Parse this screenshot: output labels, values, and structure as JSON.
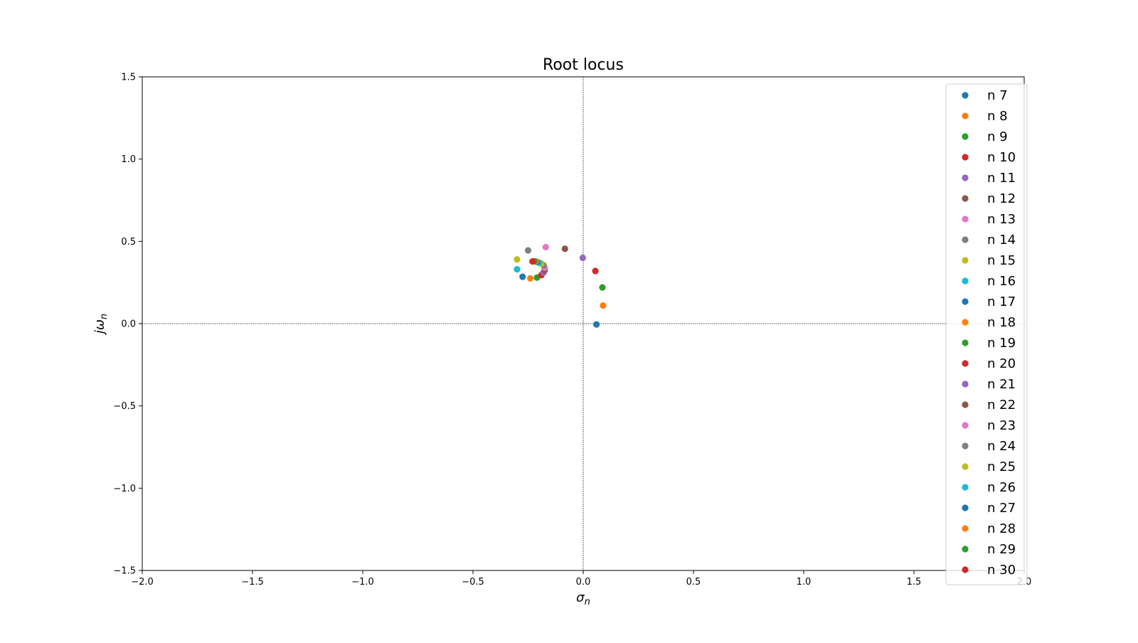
{
  "chart_data": {
    "type": "scatter",
    "title": "Root locus",
    "xlabel": "σ",
    "xlabel_sub": "n",
    "ylabel": "jω",
    "ylabel_sub": "n",
    "xlim": [
      -2.0,
      2.0
    ],
    "ylim": [
      -1.5,
      1.5
    ],
    "xticks": [
      -2.0,
      -1.5,
      -1.0,
      -0.5,
      0.0,
      0.5,
      1.0,
      1.5,
      2.0
    ],
    "xtick_labels": [
      "−2.0",
      "−1.5",
      "−1.0",
      "−0.5",
      "0.0",
      "0.5",
      "1.0",
      "1.5",
      "2.0"
    ],
    "yticks": [
      -1.5,
      -1.0,
      -0.5,
      0.0,
      0.5,
      1.0,
      1.5
    ],
    "ytick_labels": [
      "−1.5",
      "−1.0",
      "−0.5",
      "0.0",
      "0.5",
      "1.0",
      "1.5"
    ],
    "reference_lines": {
      "x": 0,
      "y": 0,
      "style": "dotted"
    },
    "legend_position": "upper-right",
    "series": [
      {
        "name": "n 7",
        "color": "#1f77b4",
        "x": 0.06,
        "y": -0.005
      },
      {
        "name": "n 8",
        "color": "#ff7f0e",
        "x": 0.09,
        "y": 0.11
      },
      {
        "name": "n 9",
        "color": "#2ca02c",
        "x": 0.087,
        "y": 0.22
      },
      {
        "name": "n 10",
        "color": "#d62728",
        "x": 0.055,
        "y": 0.32
      },
      {
        "name": "n 11",
        "color": "#9467bd",
        "x": -0.002,
        "y": 0.4
      },
      {
        "name": "n 12",
        "color": "#8c564b",
        "x": -0.083,
        "y": 0.455
      },
      {
        "name": "n 13",
        "color": "#e377c2",
        "x": -0.17,
        "y": 0.465
      },
      {
        "name": "n 14",
        "color": "#7f7f7f",
        "x": -0.25,
        "y": 0.445
      },
      {
        "name": "n 15",
        "color": "#bcbd22",
        "x": -0.3,
        "y": 0.39
      },
      {
        "name": "n 16",
        "color": "#17becf",
        "x": -0.3,
        "y": 0.33
      },
      {
        "name": "n 17",
        "color": "#1f77b4",
        "x": -0.275,
        "y": 0.285
      },
      {
        "name": "n 18",
        "color": "#ff7f0e",
        "x": -0.24,
        "y": 0.275
      },
      {
        "name": "n 19",
        "color": "#2ca02c",
        "x": -0.21,
        "y": 0.28
      },
      {
        "name": "n 20",
        "color": "#d62728",
        "x": -0.19,
        "y": 0.295
      },
      {
        "name": "n 21",
        "color": "#9467bd",
        "x": -0.18,
        "y": 0.31
      },
      {
        "name": "n 22",
        "color": "#8c564b",
        "x": -0.175,
        "y": 0.325
      },
      {
        "name": "n 23",
        "color": "#e377c2",
        "x": -0.175,
        "y": 0.34
      },
      {
        "name": "n 24",
        "color": "#7f7f7f",
        "x": -0.18,
        "y": 0.355
      },
      {
        "name": "n 25",
        "color": "#bcbd22",
        "x": -0.19,
        "y": 0.365
      },
      {
        "name": "n 26",
        "color": "#17becf",
        "x": -0.2,
        "y": 0.37
      },
      {
        "name": "n 27",
        "color": "#1f77b4",
        "x": -0.21,
        "y": 0.375
      },
      {
        "name": "n 28",
        "color": "#ff7f0e",
        "x": -0.215,
        "y": 0.378
      },
      {
        "name": "n 29",
        "color": "#2ca02c",
        "x": -0.222,
        "y": 0.379
      },
      {
        "name": "n 30",
        "color": "#d62728",
        "x": -0.23,
        "y": 0.378
      }
    ]
  }
}
